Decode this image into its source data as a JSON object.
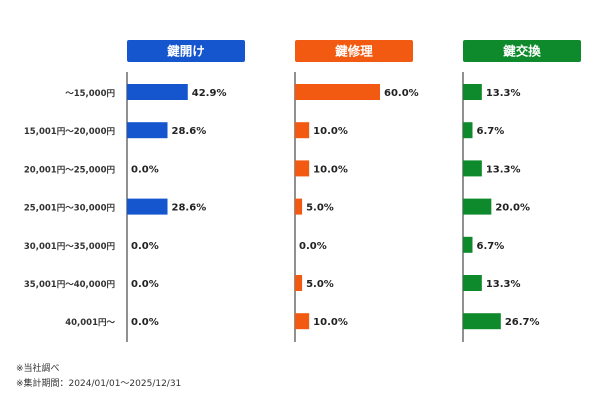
{
  "chart_data": {
    "type": "bar",
    "orientation": "horizontal",
    "categories": [
      "〜15,000円",
      "15,001円〜20,000円",
      "20,001円〜25,000円",
      "25,001円〜30,000円",
      "30,001円〜35,000円",
      "35,001円〜40,000円",
      "40,001円〜"
    ],
    "series": [
      {
        "name": "鍵開け",
        "color": "#1556cf",
        "values": [
          42.9,
          28.6,
          0.0,
          28.6,
          0.0,
          0.0,
          0.0
        ],
        "labels": [
          "42.9%",
          "28.6%",
          "0.0%",
          "28.6%",
          "0.0%",
          "0.0%",
          "0.0%"
        ]
      },
      {
        "name": "鍵修理",
        "color": "#f25a12",
        "values": [
          60.0,
          10.0,
          10.0,
          5.0,
          0.0,
          5.0,
          10.0
        ],
        "labels": [
          "60.0%",
          "10.0%",
          "10.0%",
          "5.0%",
          "0.0%",
          "5.0%",
          "10.0%"
        ]
      },
      {
        "name": "鍵交換",
        "color": "#0e8a2c",
        "values": [
          13.3,
          6.7,
          13.3,
          20.0,
          6.7,
          13.3,
          26.7
        ],
        "labels": [
          "13.3%",
          "6.7%",
          "13.3%",
          "20.0%",
          "6.7%",
          "13.3%",
          "26.7%"
        ]
      }
    ],
    "xlim": [
      0,
      60
    ],
    "grid": false,
    "legend": "none"
  },
  "notes": [
    "※当社調べ",
    "※集計期間：2024/01/01〜2025/12/31"
  ]
}
